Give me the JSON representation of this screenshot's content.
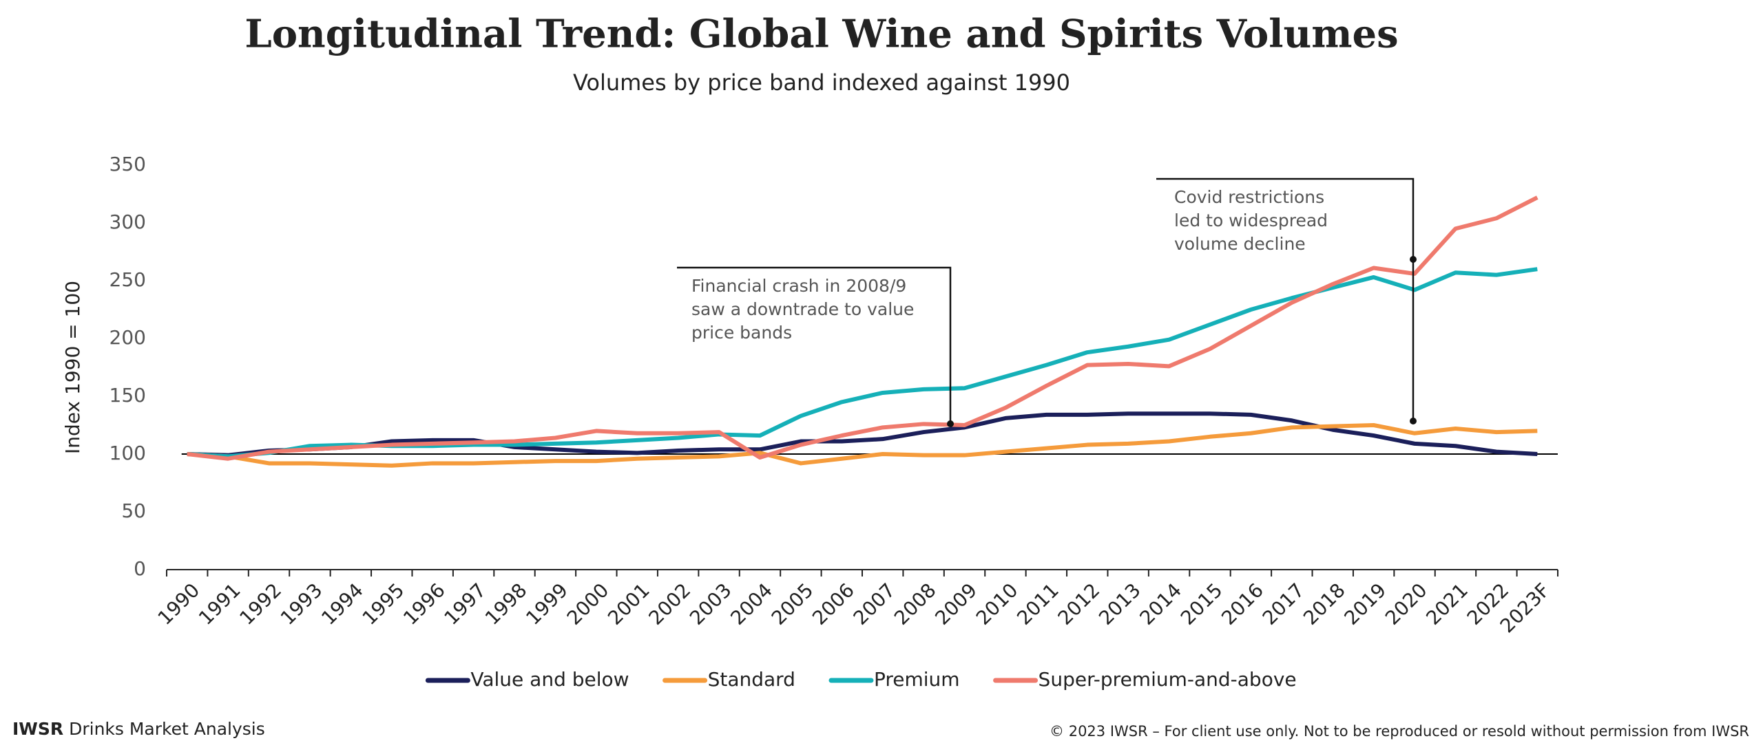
{
  "chart_data": {
    "type": "line",
    "title": "Longitudinal Trend: Global Wine and Spirits Volumes",
    "subtitle": "Volumes by price band indexed against 1990",
    "y_label": "Index 1990 = 100",
    "categories": [
      "1990",
      "1991",
      "1992",
      "1993",
      "1994",
      "1995",
      "1996",
      "1997",
      "1998",
      "1999",
      "2000",
      "2001",
      "2002",
      "2003",
      "2004",
      "2005",
      "2006",
      "2007",
      "2008",
      "2009",
      "2010",
      "2011",
      "2012",
      "2013",
      "2014",
      "2015",
      "2016",
      "2017",
      "2018",
      "2019",
      "2020",
      "2021",
      "2022",
      "2023F"
    ],
    "series": [
      {
        "name": "Value and below",
        "color": "#1b1f5a",
        "values": [
          100,
          99,
          103,
          104,
          106,
          111,
          112,
          112,
          106,
          104,
          102,
          101,
          103,
          104,
          104,
          111,
          111,
          113,
          119,
          123,
          131,
          134,
          134,
          135,
          135,
          135,
          134,
          129,
          121,
          116,
          109,
          107,
          102,
          100
        ]
      },
      {
        "name": "Standard",
        "color": "#f59b3b",
        "values": [
          100,
          98,
          92,
          92,
          91,
          90,
          92,
          92,
          93,
          94,
          94,
          96,
          97,
          98,
          101,
          92,
          96,
          100,
          99,
          99,
          102,
          105,
          108,
          109,
          111,
          115,
          118,
          123,
          124,
          125,
          118,
          122,
          119,
          120
        ]
      },
      {
        "name": "Premium",
        "color": "#15b0b8",
        "values": [
          100,
          98,
          101,
          107,
          108,
          107,
          107,
          108,
          108,
          109,
          110,
          112,
          114,
          117,
          116,
          133,
          145,
          153,
          156,
          157,
          167,
          177,
          188,
          193,
          199,
          212,
          225,
          235,
          244,
          253,
          242,
          257,
          255,
          260
        ]
      },
      {
        "name": "Super-premium-and-above",
        "color": "#ef7a6d",
        "values": [
          100,
          96,
          102,
          104,
          106,
          108,
          109,
          110,
          111,
          114,
          120,
          118,
          118,
          119,
          97,
          108,
          116,
          123,
          126,
          125,
          140,
          159,
          177,
          178,
          176,
          191,
          211,
          231,
          247,
          261,
          256,
          295,
          304,
          322
        ]
      }
    ],
    "ylim": [
      0,
      350
    ],
    "yticks": [
      0,
      50,
      100,
      150,
      200,
      250,
      300,
      350
    ],
    "reference_line": 100,
    "grid": false,
    "annotations": [
      {
        "lines": [
          "Financial crash in 2008/9",
          "saw a downtrade to value",
          "price bands"
        ]
      },
      {
        "lines": [
          "Covid restrictions",
          "led to widespread",
          "volume decline"
        ]
      }
    ]
  },
  "footer": {
    "brand": "IWSR",
    "left": "Drinks Market Analysis",
    "right": "© 2023 IWSR – For client use only. Not to be reproduced or resold without permission from IWSR"
  }
}
